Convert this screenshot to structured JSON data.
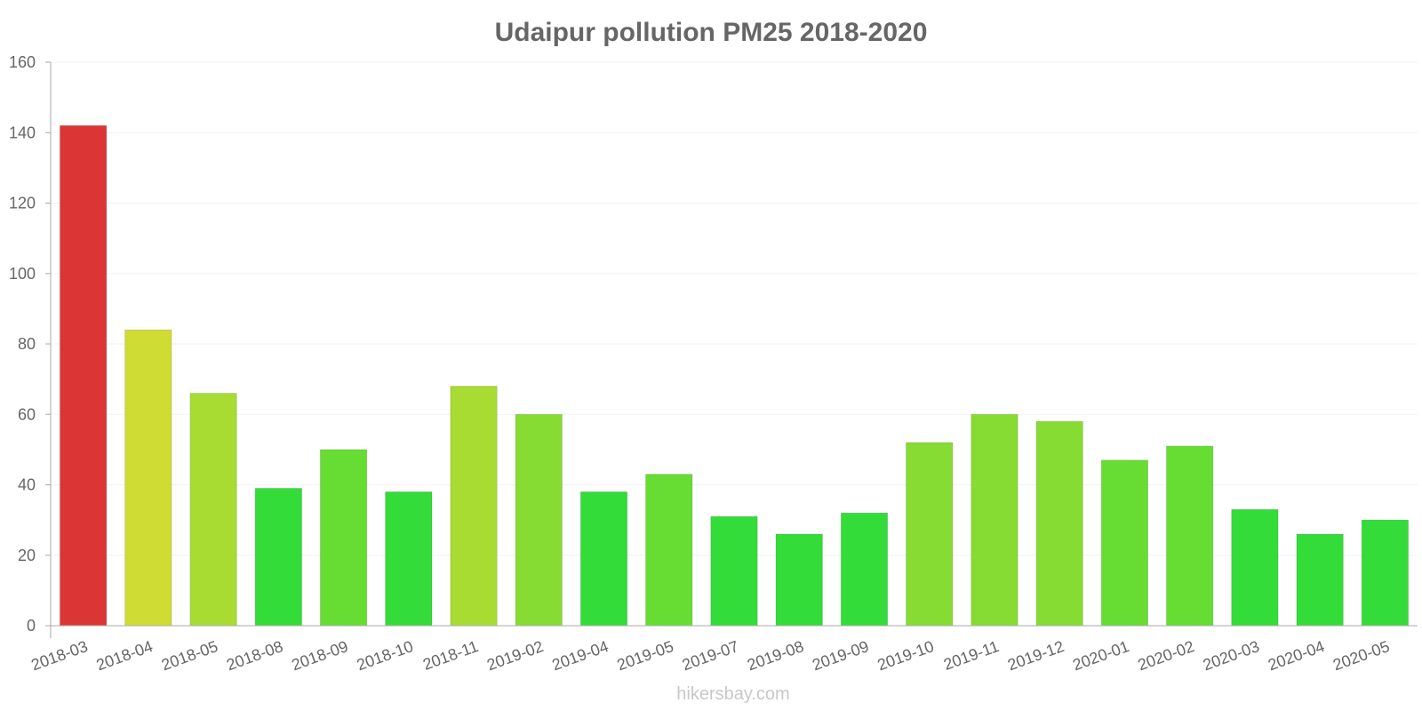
{
  "chart_data": {
    "type": "bar",
    "title": "Udaipur pollution PM25 2018-2020",
    "xlabel": "",
    "ylabel": "",
    "ylim": [
      0,
      160
    ],
    "yticks": [
      0,
      20,
      40,
      60,
      80,
      100,
      120,
      140,
      160
    ],
    "categories": [
      "2018-03",
      "2018-04",
      "2018-05",
      "2018-08",
      "2018-09",
      "2018-10",
      "2018-11",
      "2019-02",
      "2019-04",
      "2019-05",
      "2019-07",
      "2019-08",
      "2019-09",
      "2019-10",
      "2019-11",
      "2019-12",
      "2020-01",
      "2020-02",
      "2020-03",
      "2020-04",
      "2020-05"
    ],
    "values": [
      142,
      84,
      66,
      39,
      50,
      38,
      68,
      60,
      38,
      43,
      31,
      26,
      32,
      52,
      60,
      58,
      47,
      51,
      33,
      26,
      30
    ],
    "colors": [
      "#db3535",
      "#cfdc33",
      "#a8dc33",
      "#33dc39",
      "#67dc33",
      "#33dc39",
      "#a8dc33",
      "#87dc33",
      "#33dc39",
      "#67dc33",
      "#33dc39",
      "#33dc39",
      "#33dc39",
      "#87dc33",
      "#87dc33",
      "#87dc33",
      "#67dc33",
      "#67dc33",
      "#33dc39",
      "#33dc39",
      "#33dc39"
    ],
    "grid": true,
    "legend": "none"
  },
  "footer": "hikersbay.com"
}
